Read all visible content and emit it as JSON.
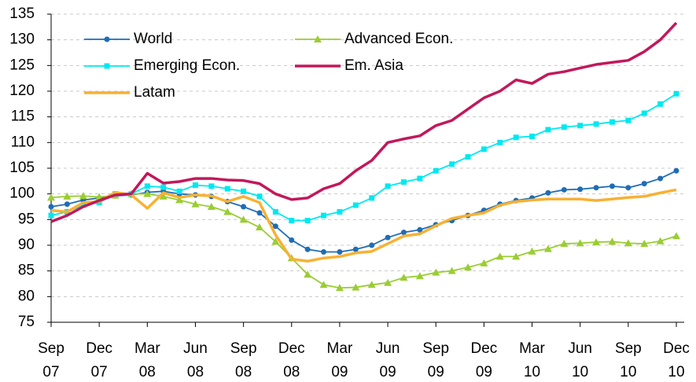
{
  "chart_data": {
    "type": "line",
    "categories": [
      "Sep 07",
      null,
      null,
      "Dec 07",
      null,
      null,
      "Mar 08",
      null,
      null,
      "Jun 08",
      null,
      null,
      "Sep 08",
      null,
      null,
      "Dec 08",
      null,
      null,
      "Mar 09",
      null,
      null,
      "Jun 09",
      null,
      null,
      "Sep 09",
      null,
      null,
      "Dec 09",
      null,
      null,
      "Mar 10",
      null,
      null,
      "Jun 10",
      null,
      null,
      "Sep 10",
      null,
      null,
      "Dec 10"
    ],
    "ylim": [
      75,
      135
    ],
    "yticks": [
      75,
      80,
      85,
      90,
      95,
      100,
      105,
      110,
      115,
      120,
      125,
      130,
      135
    ],
    "grid": true,
    "series": [
      {
        "name": "World",
        "color": "#1f6db5",
        "marker": "circle",
        "values": [
          97.5,
          98,
          98.8,
          99.2,
          99.6,
          99.8,
          100.3,
          100.5,
          100,
          99.8,
          99.5,
          98.5,
          97.5,
          96.3,
          93.7,
          91,
          89.2,
          88.7,
          88.7,
          89.2,
          90,
          91.5,
          92.5,
          93,
          94,
          94.8,
          95.8,
          96.8,
          98,
          98.7,
          99.2,
          100.2,
          100.8,
          100.9,
          101.2,
          101.5,
          101.2,
          102,
          103,
          104.5
        ]
      },
      {
        "name": "Advanced Econ.",
        "color": "#9acd32",
        "marker": "triangle",
        "values": [
          99.3,
          99.5,
          99.6,
          99.4,
          99.7,
          100,
          100,
          99.5,
          98.8,
          98,
          97.5,
          96.5,
          95,
          93.5,
          90.7,
          87.5,
          84.3,
          82.3,
          81.7,
          81.8,
          82.3,
          82.7,
          83.7,
          84,
          84.7,
          85,
          85.7,
          86.5,
          87.8,
          87.8,
          88.8,
          89.3,
          90.3,
          90.4,
          90.6,
          90.7,
          90.4,
          90.3,
          90.8,
          91.8
        ]
      },
      {
        "name": "Emerging Econ.",
        "color": "#00e8f0",
        "marker": "square",
        "values": [
          95.8,
          96.5,
          97.8,
          98.3,
          100,
          100,
          101.5,
          101.3,
          100.5,
          101.7,
          101.5,
          101,
          100.5,
          99.5,
          96.5,
          94.8,
          94.8,
          95.8,
          96.5,
          97.8,
          99.2,
          101.5,
          102.3,
          103,
          104.5,
          105.8,
          107.2,
          108.7,
          110,
          111,
          111.2,
          112.5,
          113,
          113.3,
          113.6,
          114,
          114.3,
          115.7,
          117.5,
          119.5
        ]
      },
      {
        "name": "Em. Asia",
        "color": "#c2185b",
        "marker": "none",
        "values": [
          94.6,
          95.8,
          97.5,
          98.7,
          99.8,
          100,
          104,
          102.1,
          102.4,
          103,
          103,
          102.7,
          102.6,
          102,
          100,
          98.9,
          99.2,
          101,
          102,
          104.5,
          106.5,
          110,
          110.7,
          111.3,
          113.3,
          114.3,
          116.5,
          118.7,
          120,
          122.2,
          121.5,
          123.3,
          123.8,
          124.5,
          125.2,
          125.6,
          126,
          127.7,
          130,
          133.3
        ]
      },
      {
        "name": "Latam",
        "color": "#f8b133",
        "marker": "none",
        "values": [
          96.8,
          96.5,
          98.3,
          98.5,
          100.3,
          99.8,
          97.2,
          100.2,
          99.3,
          99.8,
          99.6,
          98.5,
          99.5,
          98.3,
          92,
          87.3,
          86.9,
          87.5,
          87.8,
          88.5,
          88.8,
          90.3,
          91.8,
          92.2,
          93.8,
          95.2,
          95.8,
          96.3,
          97.8,
          98.5,
          98.8,
          99,
          99,
          99,
          98.7,
          99,
          99.3,
          99.5,
          100.2,
          100.8
        ]
      }
    ]
  }
}
